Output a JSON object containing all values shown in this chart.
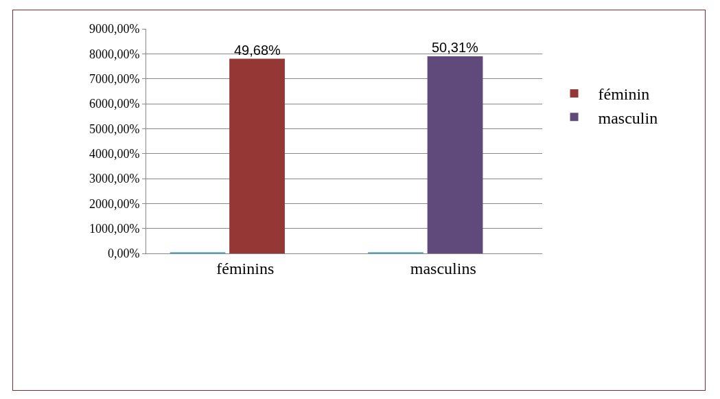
{
  "chart_data": {
    "type": "bar",
    "categories": [
      "féminins",
      "masculins"
    ],
    "series": [
      {
        "color": "#4bacc6",
        "values": [
          50,
          50
        ]
      },
      {
        "name": "féminin",
        "color": "#953735",
        "values": [
          7800,
          null
        ]
      },
      {
        "name": "masculin",
        "color": "#604a7b",
        "values": [
          null,
          7900
        ]
      }
    ],
    "ylim": [
      0,
      9000
    ],
    "yticks": [
      {
        "value": 0,
        "label": "0,00%"
      },
      {
        "value": 1000,
        "label": "1000,00%"
      },
      {
        "value": 2000,
        "label": "2000,00%"
      },
      {
        "value": 3000,
        "label": "3000,00%"
      },
      {
        "value": 4000,
        "label": "4000,00%"
      },
      {
        "value": 5000,
        "label": "5000,00%"
      },
      {
        "value": 6000,
        "label": "6000,00%"
      },
      {
        "value": 7000,
        "label": "7000,00%"
      },
      {
        "value": 8000,
        "label": "8000,00%"
      },
      {
        "value": 9000,
        "label": "9000,00%"
      }
    ],
    "annotations": [
      {
        "text": "49,68%",
        "x": "féminins",
        "y": 7800
      },
      {
        "text": "50,31%",
        "x": "masculins",
        "y": 7900
      }
    ],
    "grid": "y",
    "legend": "right"
  }
}
